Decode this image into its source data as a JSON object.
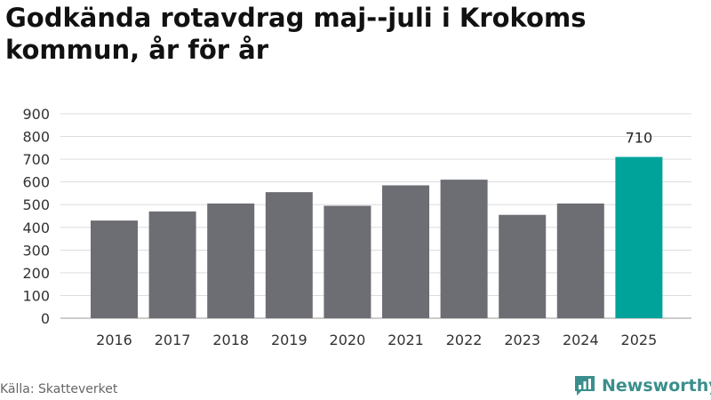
{
  "chart_data": {
    "type": "bar",
    "title": "Godkända rotavdrag maj--juli i Krokoms kommun, år för år",
    "categories": [
      "2016",
      "2017",
      "2018",
      "2019",
      "2020",
      "2021",
      "2022",
      "2023",
      "2024",
      "2025"
    ],
    "values": [
      430,
      470,
      505,
      555,
      495,
      585,
      610,
      455,
      505,
      710
    ],
    "highlight": {
      "category": "2025",
      "label": "710"
    },
    "ylim": [
      0,
      900
    ],
    "yticks": [
      "0",
      "100",
      "200",
      "300",
      "400",
      "500",
      "600",
      "700",
      "800",
      "900"
    ],
    "grid": true,
    "colors": {
      "bar": "#6d6d74",
      "highlight": "#00a39a",
      "grid": "#dcdcdc"
    }
  },
  "footer": {
    "source": "Källa: Skatteverket",
    "brand": "Newsworthy",
    "brand_icon": "newsworthy-logo-icon"
  }
}
